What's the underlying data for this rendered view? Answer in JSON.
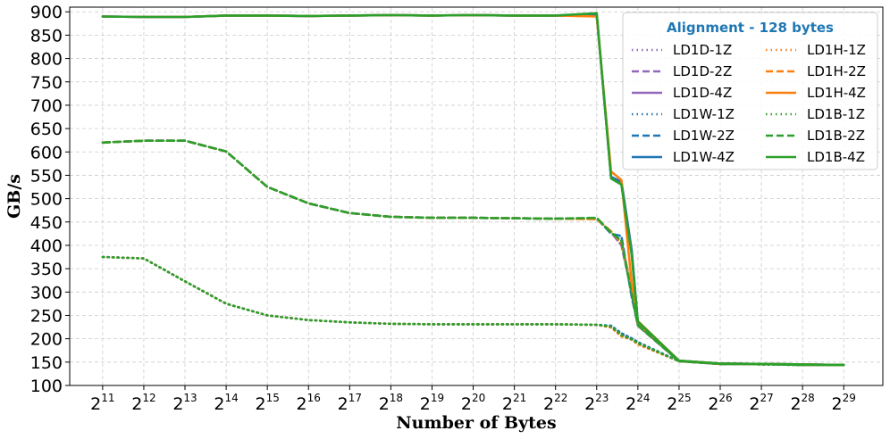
{
  "chart_data": {
    "type": "line",
    "xlabel": "Number of Bytes",
    "ylabel": "GB/s",
    "x_scale": "log2",
    "xlim_exp": [
      10.2,
      29.95
    ],
    "ylim": [
      100,
      910
    ],
    "grid": true,
    "legend": {
      "title": "Alignment - 128 bytes",
      "title_color": "#1f77b4",
      "placement": "top-right",
      "columns": 2
    },
    "x_ticks": [
      {
        "base": "2",
        "exp": "11"
      },
      {
        "base": "2",
        "exp": "12"
      },
      {
        "base": "2",
        "exp": "13"
      },
      {
        "base": "2",
        "exp": "14"
      },
      {
        "base": "2",
        "exp": "15"
      },
      {
        "base": "2",
        "exp": "16"
      },
      {
        "base": "2",
        "exp": "17"
      },
      {
        "base": "2",
        "exp": "18"
      },
      {
        "base": "2",
        "exp": "19"
      },
      {
        "base": "2",
        "exp": "20"
      },
      {
        "base": "2",
        "exp": "21"
      },
      {
        "base": "2",
        "exp": "22"
      },
      {
        "base": "2",
        "exp": "23"
      },
      {
        "base": "2",
        "exp": "24"
      },
      {
        "base": "2",
        "exp": "25"
      },
      {
        "base": "2",
        "exp": "26"
      },
      {
        "base": "2",
        "exp": "27"
      },
      {
        "base": "2",
        "exp": "28"
      },
      {
        "base": "2",
        "exp": "29"
      }
    ],
    "y_ticks": [
      "100",
      "150",
      "200",
      "250",
      "300",
      "350",
      "400",
      "450",
      "500",
      "550",
      "600",
      "650",
      "700",
      "750",
      "800",
      "850",
      "900"
    ],
    "x_exp": [
      11,
      12,
      13,
      14,
      15,
      16,
      17,
      18,
      19,
      20,
      21,
      22,
      23,
      23.35,
      23.6,
      23.85,
      24,
      25,
      26,
      27,
      28,
      29
    ],
    "series": [
      {
        "name": "LD1D-1Z",
        "color": "#9467bd",
        "style": "dotted",
        "values": [
          375,
          372,
          323,
          275,
          250,
          240,
          235,
          232,
          231,
          231,
          231,
          231,
          230,
          225,
          210,
          200,
          190,
          152,
          147,
          145,
          144,
          144
        ]
      },
      {
        "name": "LD1D-2Z",
        "color": "#9467bd",
        "style": "dashed",
        "values": [
          620,
          624,
          624,
          601,
          525,
          490,
          469,
          461,
          459,
          459,
          458,
          457,
          457,
          428,
          400,
          300,
          228,
          152,
          146,
          146,
          144,
          144
        ]
      },
      {
        "name": "LD1D-4Z",
        "color": "#9467bd",
        "style": "solid",
        "values": [
          890,
          889,
          889,
          892,
          892,
          891,
          892,
          893,
          892,
          893,
          892,
          892,
          892,
          545,
          538,
          390,
          235,
          153,
          147,
          146,
          145,
          144
        ]
      },
      {
        "name": "LD1W-1Z",
        "color": "#1f77b4",
        "style": "dotted",
        "values": [
          375,
          372,
          323,
          275,
          250,
          240,
          235,
          232,
          231,
          231,
          231,
          231,
          230,
          228,
          212,
          201,
          193,
          152,
          147,
          145,
          144,
          144
        ]
      },
      {
        "name": "LD1W-2Z",
        "color": "#1f77b4",
        "style": "dashed",
        "values": [
          620,
          624,
          624,
          601,
          525,
          490,
          469,
          461,
          459,
          459,
          458,
          457,
          458,
          425,
          420,
          290,
          230,
          152,
          146,
          146,
          144,
          144
        ]
      },
      {
        "name": "LD1W-4Z",
        "color": "#1f77b4",
        "style": "solid",
        "values": [
          890,
          889,
          889,
          892,
          892,
          891,
          892,
          893,
          892,
          893,
          892,
          892,
          893,
          547,
          535,
          388,
          236,
          153,
          147,
          146,
          145,
          144
        ]
      },
      {
        "name": "LD1H-1Z",
        "color": "#ff7f0e",
        "style": "dotted",
        "values": [
          375,
          372,
          323,
          275,
          250,
          240,
          235,
          232,
          231,
          231,
          231,
          231,
          230,
          224,
          205,
          198,
          188,
          152,
          147,
          145,
          144,
          144
        ]
      },
      {
        "name": "LD1H-2Z",
        "color": "#ff7f0e",
        "style": "dashed",
        "values": [
          620,
          624,
          624,
          601,
          525,
          490,
          469,
          461,
          459,
          459,
          458,
          457,
          456,
          430,
          405,
          310,
          232,
          152,
          146,
          146,
          144,
          144
        ]
      },
      {
        "name": "LD1H-4Z",
        "color": "#ff7f0e",
        "style": "solid",
        "values": [
          890,
          889,
          889,
          892,
          892,
          891,
          892,
          893,
          892,
          893,
          892,
          892,
          890,
          558,
          540,
          320,
          238,
          153,
          147,
          146,
          145,
          144
        ]
      },
      {
        "name": "LD1B-1Z",
        "color": "#2ca02c",
        "style": "dotted",
        "values": [
          375,
          372,
          323,
          275,
          250,
          240,
          235,
          232,
          231,
          231,
          231,
          231,
          230,
          226,
          208,
          199,
          191,
          152,
          147,
          145,
          144,
          144
        ]
      },
      {
        "name": "LD1B-2Z",
        "color": "#2ca02c",
        "style": "dashed",
        "values": [
          620,
          624,
          624,
          601,
          525,
          490,
          469,
          461,
          459,
          459,
          458,
          457,
          459,
          427,
          410,
          295,
          229,
          152,
          146,
          146,
          144,
          144
        ]
      },
      {
        "name": "LD1B-4Z",
        "color": "#2ca02c",
        "style": "solid",
        "values": [
          890,
          889,
          889,
          892,
          892,
          891,
          892,
          893,
          892,
          893,
          892,
          892,
          897,
          543,
          530,
          380,
          237,
          153,
          147,
          146,
          145,
          144
        ]
      }
    ]
  }
}
